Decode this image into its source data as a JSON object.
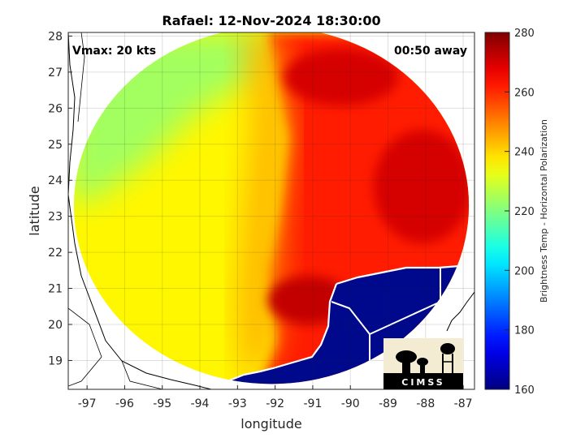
{
  "title": "Rafael: 12-Nov-2024 18:30:00",
  "annotations": {
    "vmax": "Vmax: 20 kts",
    "away": "00:50 away"
  },
  "axes": {
    "xlabel": "longitude",
    "ylabel": "latitude",
    "xlim": [
      -97.5,
      -86.7
    ],
    "ylim": [
      18.2,
      28.1
    ],
    "xticks": [
      -97,
      -96,
      -95,
      -94,
      -93,
      -92,
      -91,
      -90,
      -89,
      -88,
      -87
    ],
    "yticks": [
      19,
      20,
      21,
      22,
      23,
      24,
      25,
      26,
      27,
      28
    ],
    "grid": true
  },
  "colorbar": {
    "label": "Brightness Temp - Horizontal Polarization",
    "min": 160,
    "max": 280,
    "ticks": [
      160,
      180,
      200,
      220,
      240,
      260,
      280
    ],
    "colormap": "jet"
  },
  "swath": {
    "center_lon": -92.1,
    "center_lat": 23.3,
    "radius_lon": 5.25,
    "radius_lat": 4.95
  },
  "field_regions": [
    {
      "name": "western-gulf",
      "temp": 236
    },
    {
      "name": "northwest-warm-band",
      "temp": 224
    },
    {
      "name": "eastern-gulf",
      "temp": 262
    },
    {
      "name": "yucatan-land",
      "temp": 268
    }
  ],
  "logo": {
    "text": "CIMSS"
  },
  "colors": {
    "land_fill": "#00088c",
    "coast_white": "#ffffff",
    "axes_text": "#262626"
  }
}
